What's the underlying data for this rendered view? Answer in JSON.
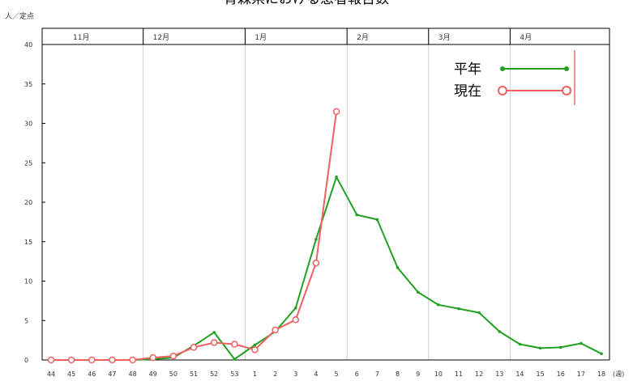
{
  "chart_data": {
    "type": "line",
    "title": "青森県における患者報告数",
    "ylabel": "人／定点",
    "xunit": "(週)",
    "ylim": [
      0,
      40
    ],
    "yticks": [
      0,
      5,
      10,
      15,
      20,
      25,
      30,
      35,
      40
    ],
    "categories": [
      "44",
      "45",
      "46",
      "47",
      "48",
      "49",
      "50",
      "51",
      "52",
      "53",
      "1",
      "2",
      "3",
      "4",
      "5",
      "6",
      "7",
      "8",
      "9",
      "10",
      "11",
      "12",
      "13",
      "14",
      "15",
      "16",
      "17",
      "18"
    ],
    "months": [
      {
        "label": "11月",
        "start": 0
      },
      {
        "label": "12月",
        "start": 5
      },
      {
        "label": "1月",
        "start": 10
      },
      {
        "label": "2月",
        "start": 15
      },
      {
        "label": "3月",
        "start": 19
      },
      {
        "label": "4月",
        "start": 23
      }
    ],
    "series": [
      {
        "name": "平年",
        "color": "#22a022",
        "marker": "dot",
        "values": [
          0,
          0,
          0,
          0,
          0,
          0.1,
          0.3,
          1.8,
          3.5,
          0.1,
          1.9,
          3.6,
          6.6,
          15.3,
          23.2,
          18.4,
          17.8,
          11.7,
          8.6,
          7.0,
          6.5,
          6.0,
          3.6,
          2.0,
          1.5,
          1.6,
          2.1,
          0.8
        ]
      },
      {
        "name": "現在",
        "color": "#f06060",
        "marker": "circle",
        "values": [
          0,
          0,
          0,
          0,
          0,
          0.3,
          0.5,
          1.6,
          2.2,
          2.0,
          1.3,
          3.8,
          5.1,
          12.3,
          31.5,
          null,
          null,
          null,
          null,
          null,
          null,
          null,
          null,
          null,
          null,
          null,
          null,
          null
        ]
      }
    ],
    "legend_position": "top-right",
    "grid": "vertical"
  }
}
